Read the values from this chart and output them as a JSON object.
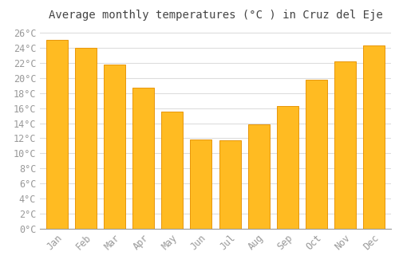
{
  "title": "Average monthly temperatures (°C ) in Cruz del Eje",
  "months": [
    "Jan",
    "Feb",
    "Mar",
    "Apr",
    "May",
    "Jun",
    "Jul",
    "Aug",
    "Sep",
    "Oct",
    "Nov",
    "Dec"
  ],
  "values": [
    25.0,
    24.0,
    21.8,
    18.7,
    15.5,
    11.8,
    11.7,
    13.8,
    16.3,
    19.8,
    22.2,
    24.3
  ],
  "bar_color": "#FFBB22",
  "bar_edge_color": "#E8960A",
  "background_color": "#FFFFFF",
  "grid_color": "#DDDDDD",
  "title_color": "#444444",
  "tick_label_color": "#999999",
  "ylim": [
    0,
    27
  ],
  "ytick_step": 2,
  "title_fontsize": 10,
  "tick_fontsize": 8.5
}
